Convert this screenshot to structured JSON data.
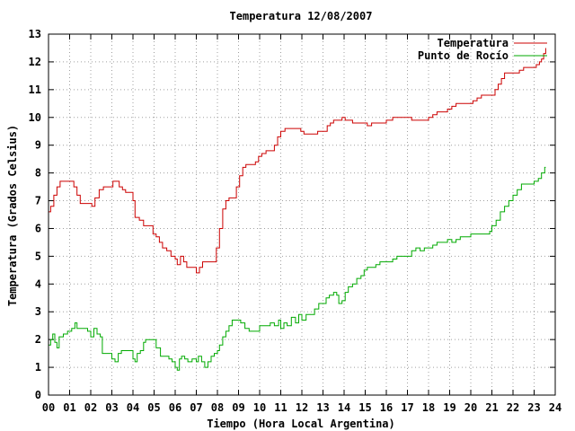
{
  "chart_data": {
    "type": "line",
    "title": "Temperatura 12/08/2007",
    "xlabel": "Tiempo (Hora Local Argentina)",
    "ylabel": "Temperatura (Grados Celsius)",
    "xlim": [
      0,
      24
    ],
    "ylim": [
      0,
      13
    ],
    "x_tick_labels": [
      "00",
      "01",
      "02",
      "03",
      "04",
      "05",
      "06",
      "07",
      "08",
      "09",
      "10",
      "11",
      "12",
      "13",
      "14",
      "15",
      "16",
      "17",
      "18",
      "19",
      "20",
      "21",
      "22",
      "23",
      "24"
    ],
    "y_tick_labels": [
      "0",
      "1",
      "2",
      "3",
      "4",
      "5",
      "6",
      "7",
      "8",
      "9",
      "10",
      "11",
      "12",
      "13"
    ],
    "grid": true,
    "legend_position": "top-right",
    "colors": {
      "temperatura": "#cc0000",
      "punto_de_rocio": "#00aa00"
    },
    "series": [
      {
        "name": "Temperatura",
        "color": "#cc0000",
        "points": [
          [
            0.0,
            6.6
          ],
          [
            0.1,
            6.8
          ],
          [
            0.25,
            7.2
          ],
          [
            0.4,
            7.5
          ],
          [
            0.55,
            7.7
          ],
          [
            0.8,
            7.7
          ],
          [
            1.05,
            7.7
          ],
          [
            1.2,
            7.5
          ],
          [
            1.35,
            7.2
          ],
          [
            1.5,
            6.9
          ],
          [
            1.7,
            6.9
          ],
          [
            1.9,
            6.9
          ],
          [
            2.05,
            6.8
          ],
          [
            2.2,
            7.1
          ],
          [
            2.4,
            7.4
          ],
          [
            2.6,
            7.5
          ],
          [
            2.9,
            7.5
          ],
          [
            3.05,
            7.7
          ],
          [
            3.2,
            7.7
          ],
          [
            3.35,
            7.5
          ],
          [
            3.5,
            7.4
          ],
          [
            3.65,
            7.3
          ],
          [
            3.9,
            7.3
          ],
          [
            4.0,
            7.0
          ],
          [
            4.1,
            6.4
          ],
          [
            4.3,
            6.3
          ],
          [
            4.5,
            6.1
          ],
          [
            4.8,
            6.1
          ],
          [
            4.95,
            5.8
          ],
          [
            5.1,
            5.7
          ],
          [
            5.25,
            5.5
          ],
          [
            5.4,
            5.3
          ],
          [
            5.6,
            5.2
          ],
          [
            5.8,
            5.0
          ],
          [
            6.0,
            4.9
          ],
          [
            6.1,
            4.7
          ],
          [
            6.25,
            5.0
          ],
          [
            6.4,
            4.8
          ],
          [
            6.55,
            4.6
          ],
          [
            6.75,
            4.6
          ],
          [
            6.9,
            4.6
          ],
          [
            7.0,
            4.4
          ],
          [
            7.15,
            4.6
          ],
          [
            7.3,
            4.8
          ],
          [
            7.45,
            4.8
          ],
          [
            7.6,
            4.8
          ],
          [
            7.8,
            4.8
          ],
          [
            7.95,
            5.3
          ],
          [
            8.1,
            6.0
          ],
          [
            8.25,
            6.7
          ],
          [
            8.4,
            7.0
          ],
          [
            8.55,
            7.1
          ],
          [
            8.75,
            7.1
          ],
          [
            8.9,
            7.5
          ],
          [
            9.05,
            7.9
          ],
          [
            9.2,
            8.2
          ],
          [
            9.35,
            8.3
          ],
          [
            9.6,
            8.3
          ],
          [
            9.8,
            8.4
          ],
          [
            9.95,
            8.6
          ],
          [
            10.1,
            8.7
          ],
          [
            10.3,
            8.8
          ],
          [
            10.5,
            8.8
          ],
          [
            10.7,
            9.0
          ],
          [
            10.85,
            9.3
          ],
          [
            11.0,
            9.5
          ],
          [
            11.2,
            9.6
          ],
          [
            11.5,
            9.6
          ],
          [
            11.8,
            9.6
          ],
          [
            11.95,
            9.5
          ],
          [
            12.1,
            9.4
          ],
          [
            12.3,
            9.4
          ],
          [
            12.5,
            9.4
          ],
          [
            12.75,
            9.5
          ],
          [
            13.0,
            9.5
          ],
          [
            13.2,
            9.7
          ],
          [
            13.35,
            9.8
          ],
          [
            13.5,
            9.9
          ],
          [
            13.7,
            9.9
          ],
          [
            13.9,
            10.0
          ],
          [
            14.05,
            9.9
          ],
          [
            14.2,
            9.9
          ],
          [
            14.4,
            9.8
          ],
          [
            14.7,
            9.8
          ],
          [
            14.95,
            9.8
          ],
          [
            15.1,
            9.7
          ],
          [
            15.3,
            9.8
          ],
          [
            15.6,
            9.8
          ],
          [
            15.85,
            9.8
          ],
          [
            16.0,
            9.9
          ],
          [
            16.3,
            10.0
          ],
          [
            16.7,
            10.0
          ],
          [
            17.0,
            10.0
          ],
          [
            17.2,
            9.9
          ],
          [
            17.6,
            9.9
          ],
          [
            17.9,
            9.9
          ],
          [
            18.0,
            10.0
          ],
          [
            18.2,
            10.1
          ],
          [
            18.4,
            10.2
          ],
          [
            18.7,
            10.2
          ],
          [
            18.9,
            10.3
          ],
          [
            19.1,
            10.4
          ],
          [
            19.3,
            10.5
          ],
          [
            19.6,
            10.5
          ],
          [
            19.9,
            10.5
          ],
          [
            20.1,
            10.6
          ],
          [
            20.3,
            10.7
          ],
          [
            20.5,
            10.8
          ],
          [
            20.8,
            10.8
          ],
          [
            21.0,
            10.8
          ],
          [
            21.15,
            11.0
          ],
          [
            21.3,
            11.2
          ],
          [
            21.45,
            11.4
          ],
          [
            21.6,
            11.6
          ],
          [
            21.8,
            11.6
          ],
          [
            22.1,
            11.6
          ],
          [
            22.3,
            11.7
          ],
          [
            22.5,
            11.8
          ],
          [
            22.8,
            11.8
          ],
          [
            23.0,
            11.8
          ],
          [
            23.1,
            11.9
          ],
          [
            23.25,
            12.0
          ],
          [
            23.35,
            12.1
          ],
          [
            23.45,
            12.3
          ],
          [
            23.55,
            12.5
          ]
        ]
      },
      {
        "name": "Punto de Rocío",
        "color": "#00aa00",
        "points": [
          [
            0.0,
            1.8
          ],
          [
            0.1,
            2.0
          ],
          [
            0.2,
            2.2
          ],
          [
            0.3,
            1.9
          ],
          [
            0.4,
            1.7
          ],
          [
            0.5,
            2.1
          ],
          [
            0.7,
            2.2
          ],
          [
            0.9,
            2.3
          ],
          [
            1.1,
            2.4
          ],
          [
            1.25,
            2.6
          ],
          [
            1.35,
            2.4
          ],
          [
            1.5,
            2.4
          ],
          [
            1.7,
            2.4
          ],
          [
            1.85,
            2.3
          ],
          [
            2.0,
            2.1
          ],
          [
            2.15,
            2.4
          ],
          [
            2.3,
            2.2
          ],
          [
            2.45,
            2.1
          ],
          [
            2.55,
            1.5
          ],
          [
            2.7,
            1.5
          ],
          [
            2.9,
            1.5
          ],
          [
            3.0,
            1.3
          ],
          [
            3.15,
            1.2
          ],
          [
            3.3,
            1.5
          ],
          [
            3.45,
            1.6
          ],
          [
            3.65,
            1.6
          ],
          [
            3.85,
            1.6
          ],
          [
            4.0,
            1.3
          ],
          [
            4.1,
            1.2
          ],
          [
            4.2,
            1.5
          ],
          [
            4.35,
            1.6
          ],
          [
            4.5,
            1.9
          ],
          [
            4.6,
            2.0
          ],
          [
            4.8,
            2.0
          ],
          [
            5.0,
            2.0
          ],
          [
            5.1,
            1.7
          ],
          [
            5.3,
            1.4
          ],
          [
            5.5,
            1.4
          ],
          [
            5.7,
            1.3
          ],
          [
            5.85,
            1.2
          ],
          [
            6.0,
            1.0
          ],
          [
            6.1,
            0.9
          ],
          [
            6.2,
            1.3
          ],
          [
            6.3,
            1.4
          ],
          [
            6.45,
            1.3
          ],
          [
            6.6,
            1.2
          ],
          [
            6.8,
            1.3
          ],
          [
            7.0,
            1.2
          ],
          [
            7.1,
            1.4
          ],
          [
            7.25,
            1.2
          ],
          [
            7.4,
            1.0
          ],
          [
            7.55,
            1.2
          ],
          [
            7.7,
            1.4
          ],
          [
            7.85,
            1.5
          ],
          [
            8.0,
            1.6
          ],
          [
            8.1,
            1.8
          ],
          [
            8.25,
            2.1
          ],
          [
            8.4,
            2.3
          ],
          [
            8.55,
            2.5
          ],
          [
            8.7,
            2.7
          ],
          [
            8.9,
            2.7
          ],
          [
            9.1,
            2.6
          ],
          [
            9.3,
            2.4
          ],
          [
            9.5,
            2.3
          ],
          [
            9.8,
            2.3
          ],
          [
            10.0,
            2.5
          ],
          [
            10.2,
            2.5
          ],
          [
            10.5,
            2.6
          ],
          [
            10.7,
            2.5
          ],
          [
            10.9,
            2.7
          ],
          [
            11.0,
            2.4
          ],
          [
            11.15,
            2.6
          ],
          [
            11.3,
            2.5
          ],
          [
            11.5,
            2.8
          ],
          [
            11.7,
            2.6
          ],
          [
            11.85,
            2.9
          ],
          [
            12.0,
            2.7
          ],
          [
            12.2,
            2.9
          ],
          [
            12.4,
            2.9
          ],
          [
            12.6,
            3.1
          ],
          [
            12.8,
            3.3
          ],
          [
            13.0,
            3.3
          ],
          [
            13.15,
            3.5
          ],
          [
            13.3,
            3.6
          ],
          [
            13.5,
            3.7
          ],
          [
            13.65,
            3.6
          ],
          [
            13.75,
            3.3
          ],
          [
            13.9,
            3.4
          ],
          [
            14.05,
            3.7
          ],
          [
            14.2,
            3.9
          ],
          [
            14.4,
            4.0
          ],
          [
            14.6,
            4.2
          ],
          [
            14.8,
            4.3
          ],
          [
            14.95,
            4.5
          ],
          [
            15.1,
            4.6
          ],
          [
            15.3,
            4.6
          ],
          [
            15.5,
            4.7
          ],
          [
            15.7,
            4.8
          ],
          [
            15.9,
            4.8
          ],
          [
            16.1,
            4.8
          ],
          [
            16.3,
            4.9
          ],
          [
            16.5,
            5.0
          ],
          [
            16.8,
            5.0
          ],
          [
            17.0,
            5.0
          ],
          [
            17.2,
            5.2
          ],
          [
            17.4,
            5.3
          ],
          [
            17.6,
            5.2
          ],
          [
            17.8,
            5.3
          ],
          [
            18.0,
            5.3
          ],
          [
            18.2,
            5.4
          ],
          [
            18.4,
            5.5
          ],
          [
            18.6,
            5.5
          ],
          [
            18.8,
            5.5
          ],
          [
            18.9,
            5.6
          ],
          [
            19.1,
            5.5
          ],
          [
            19.3,
            5.6
          ],
          [
            19.5,
            5.7
          ],
          [
            19.7,
            5.7
          ],
          [
            20.0,
            5.8
          ],
          [
            20.3,
            5.8
          ],
          [
            20.5,
            5.8
          ],
          [
            20.7,
            5.8
          ],
          [
            20.9,
            5.9
          ],
          [
            21.0,
            6.1
          ],
          [
            21.2,
            6.3
          ],
          [
            21.4,
            6.6
          ],
          [
            21.6,
            6.8
          ],
          [
            21.8,
            7.0
          ],
          [
            22.0,
            7.2
          ],
          [
            22.2,
            7.4
          ],
          [
            22.4,
            7.6
          ],
          [
            22.6,
            7.6
          ],
          [
            22.8,
            7.6
          ],
          [
            23.0,
            7.7
          ],
          [
            23.2,
            7.8
          ],
          [
            23.35,
            8.0
          ],
          [
            23.5,
            8.2
          ],
          [
            23.55,
            8.2
          ]
        ]
      }
    ]
  }
}
